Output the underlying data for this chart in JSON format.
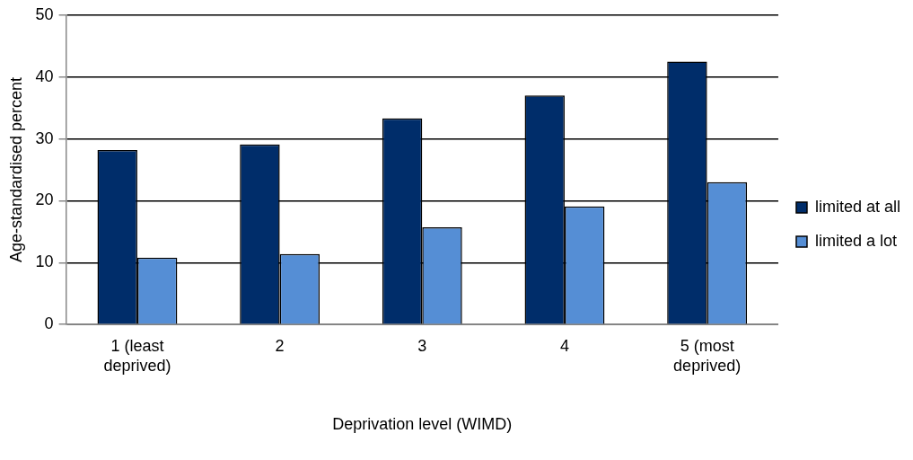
{
  "chart_data": {
    "type": "bar",
    "xlabel": "Deprivation level (WIMD)",
    "ylabel": "Age-standardised percent",
    "categories": [
      "1 (least deprived)",
      "2",
      "3",
      "4",
      "5 (most deprived)"
    ],
    "series": [
      {
        "name": "limited at all",
        "color": "#002d6a",
        "values": [
          28.2,
          29.1,
          33.3,
          37.0,
          42.5
        ]
      },
      {
        "name": "limited a lot",
        "color": "#558ed5",
        "values": [
          10.8,
          11.4,
          15.7,
          19.1,
          23.0
        ]
      }
    ],
    "ylim": [
      0,
      50
    ],
    "yticks": [
      0,
      10,
      20,
      30,
      40,
      50
    ],
    "grid": "y",
    "legend": "right"
  }
}
